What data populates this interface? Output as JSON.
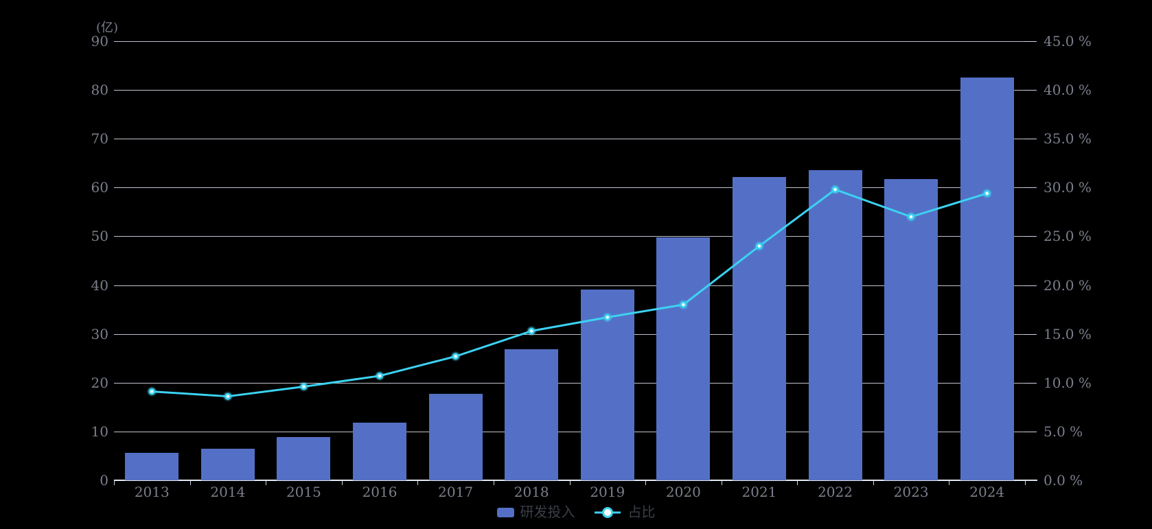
{
  "chart_data": {
    "type": "bar+line",
    "categories": [
      "2013",
      "2014",
      "2015",
      "2016",
      "2017",
      "2018",
      "2019",
      "2020",
      "2021",
      "2022",
      "2023",
      "2024"
    ],
    "series": [
      {
        "name": "研发投入",
        "type": "bar",
        "axis": "left",
        "unit": "亿",
        "color": "#5470C6",
        "values": [
          5.6,
          6.5,
          8.9,
          11.8,
          17.7,
          26.8,
          39.1,
          49.8,
          62.1,
          63.5,
          61.7,
          82.5
        ]
      },
      {
        "name": "占比",
        "type": "line",
        "axis": "right",
        "unit": "%",
        "color": "#3CD2F2",
        "point_core_color": "#ffffff",
        "values": [
          9.1,
          8.6,
          9.6,
          10.7,
          12.7,
          15.3,
          16.7,
          18.0,
          24.0,
          29.8,
          27.0,
          29.4
        ]
      }
    ],
    "y_left": {
      "unit_label": "(亿)",
      "min": 0,
      "max": 90,
      "step": 10
    },
    "y_right": {
      "min": 0,
      "max": 45,
      "step": 5,
      "decimals": 1,
      "suffix": " %"
    },
    "title": "",
    "xlabel": "",
    "ylabel": "",
    "grid": true,
    "legend": [
      "研发投入",
      "占比"
    ],
    "legend_position": "bottom-center",
    "colors": {
      "background": "#000000",
      "gridline": "#E0E6F1",
      "axis_label": "#7B7F8C",
      "legend_text": "#3A3F48"
    }
  }
}
